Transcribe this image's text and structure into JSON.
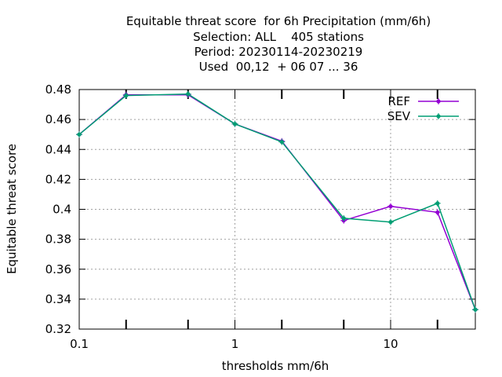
{
  "chart_data": {
    "type": "line",
    "title_lines": [
      "Equitable threat score  for 6h Precipitation (mm/6h)",
      "Selection: ALL    405 stations",
      "Period: 20230114-20230219",
      "Used  00,12  + 06 07 ... 36"
    ],
    "xlabel": "thresholds mm/6h",
    "ylabel": "Equitable threat score",
    "x_scale": "log",
    "xlim": [
      0.1,
      35
    ],
    "ylim": [
      0.32,
      0.48
    ],
    "x_ticks": [
      {
        "value": 0.1,
        "label": "0.1"
      },
      {
        "value": 1,
        "label": "1"
      },
      {
        "value": 10,
        "label": "10"
      }
    ],
    "x_minor_ticks": [
      0.2,
      0.5,
      2,
      5,
      20
    ],
    "y_ticks": [
      {
        "value": 0.32,
        "label": "0.32"
      },
      {
        "value": 0.34,
        "label": "0.34"
      },
      {
        "value": 0.36,
        "label": "0.36"
      },
      {
        "value": 0.38,
        "label": "0.38"
      },
      {
        "value": 0.4,
        "label": "0.4"
      },
      {
        "value": 0.42,
        "label": "0.42"
      },
      {
        "value": 0.44,
        "label": "0.44"
      },
      {
        "value": 0.46,
        "label": "0.46"
      },
      {
        "value": 0.48,
        "label": "0.48"
      }
    ],
    "grid": true,
    "legend_position": "top-right",
    "x": [
      0.1,
      0.2,
      0.5,
      1,
      2,
      5,
      10,
      20,
      35
    ],
    "series": [
      {
        "name": "REF",
        "color": "#9400d3",
        "values": [
          0.45,
          0.4765,
          0.4765,
          0.457,
          0.4455,
          0.3925,
          0.402,
          0.398,
          0.333
        ]
      },
      {
        "name": "SEV",
        "color": "#009e73",
        "values": [
          0.45,
          0.476,
          0.477,
          0.457,
          0.445,
          0.394,
          0.3915,
          0.404,
          0.333
        ]
      }
    ]
  }
}
